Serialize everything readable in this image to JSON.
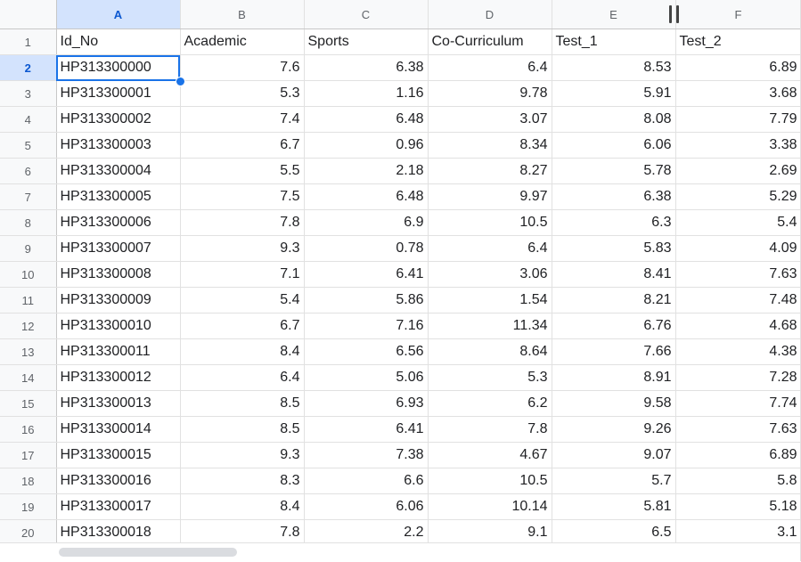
{
  "columns": [
    "A",
    "B",
    "C",
    "D",
    "E",
    "F"
  ],
  "headers": [
    "Id_No",
    "Academic",
    "Sports",
    "Co-Curriculum",
    "Test_1",
    "Test_2"
  ],
  "rows": [
    {
      "n": "2",
      "id": "HP313300000",
      "v": [
        "7.6",
        "6.38",
        "6.4",
        "8.53",
        "6.89"
      ]
    },
    {
      "n": "3",
      "id": "HP313300001",
      "v": [
        "5.3",
        "1.16",
        "9.78",
        "5.91",
        "3.68"
      ]
    },
    {
      "n": "4",
      "id": "HP313300002",
      "v": [
        "7.4",
        "6.48",
        "3.07",
        "8.08",
        "7.79"
      ]
    },
    {
      "n": "5",
      "id": "HP313300003",
      "v": [
        "6.7",
        "0.96",
        "8.34",
        "6.06",
        "3.38"
      ]
    },
    {
      "n": "6",
      "id": "HP313300004",
      "v": [
        "5.5",
        "2.18",
        "8.27",
        "5.78",
        "2.69"
      ]
    },
    {
      "n": "7",
      "id": "HP313300005",
      "v": [
        "7.5",
        "6.48",
        "9.97",
        "6.38",
        "5.29"
      ]
    },
    {
      "n": "8",
      "id": "HP313300006",
      "v": [
        "7.8",
        "6.9",
        "10.5",
        "6.3",
        "5.4"
      ]
    },
    {
      "n": "9",
      "id": "HP313300007",
      "v": [
        "9.3",
        "0.78",
        "6.4",
        "5.83",
        "4.09"
      ]
    },
    {
      "n": "10",
      "id": "HP313300008",
      "v": [
        "7.1",
        "6.41",
        "3.06",
        "8.41",
        "7.63"
      ]
    },
    {
      "n": "11",
      "id": "HP313300009",
      "v": [
        "5.4",
        "5.86",
        "1.54",
        "8.21",
        "7.48"
      ]
    },
    {
      "n": "12",
      "id": "HP313300010",
      "v": [
        "6.7",
        "7.16",
        "11.34",
        "6.76",
        "4.68"
      ]
    },
    {
      "n": "13",
      "id": "HP313300011",
      "v": [
        "8.4",
        "6.56",
        "8.64",
        "7.66",
        "4.38"
      ]
    },
    {
      "n": "14",
      "id": "HP313300012",
      "v": [
        "6.4",
        "5.06",
        "5.3",
        "8.91",
        "7.28"
      ]
    },
    {
      "n": "15",
      "id": "HP313300013",
      "v": [
        "8.5",
        "6.93",
        "6.2",
        "9.58",
        "7.74"
      ]
    },
    {
      "n": "16",
      "id": "HP313300014",
      "v": [
        "8.5",
        "6.41",
        "7.8",
        "9.26",
        "7.63"
      ]
    },
    {
      "n": "17",
      "id": "HP313300015",
      "v": [
        "9.3",
        "7.38",
        "4.67",
        "9.07",
        "6.89"
      ]
    },
    {
      "n": "18",
      "id": "HP313300016",
      "v": [
        "8.3",
        "6.6",
        "10.5",
        "5.7",
        "5.8"
      ]
    },
    {
      "n": "19",
      "id": "HP313300017",
      "v": [
        "8.4",
        "6.06",
        "10.14",
        "5.81",
        "5.18"
      ]
    },
    {
      "n": "20",
      "id": "HP313300018",
      "v": [
        "7.8",
        "2.2",
        "9.1",
        "6.5",
        "3.1"
      ]
    }
  ],
  "header_row_number": "1",
  "selected_column": "A",
  "selected_row": "2",
  "accent_color": "#1a73e8",
  "resize_icon": "column-resize-icon"
}
